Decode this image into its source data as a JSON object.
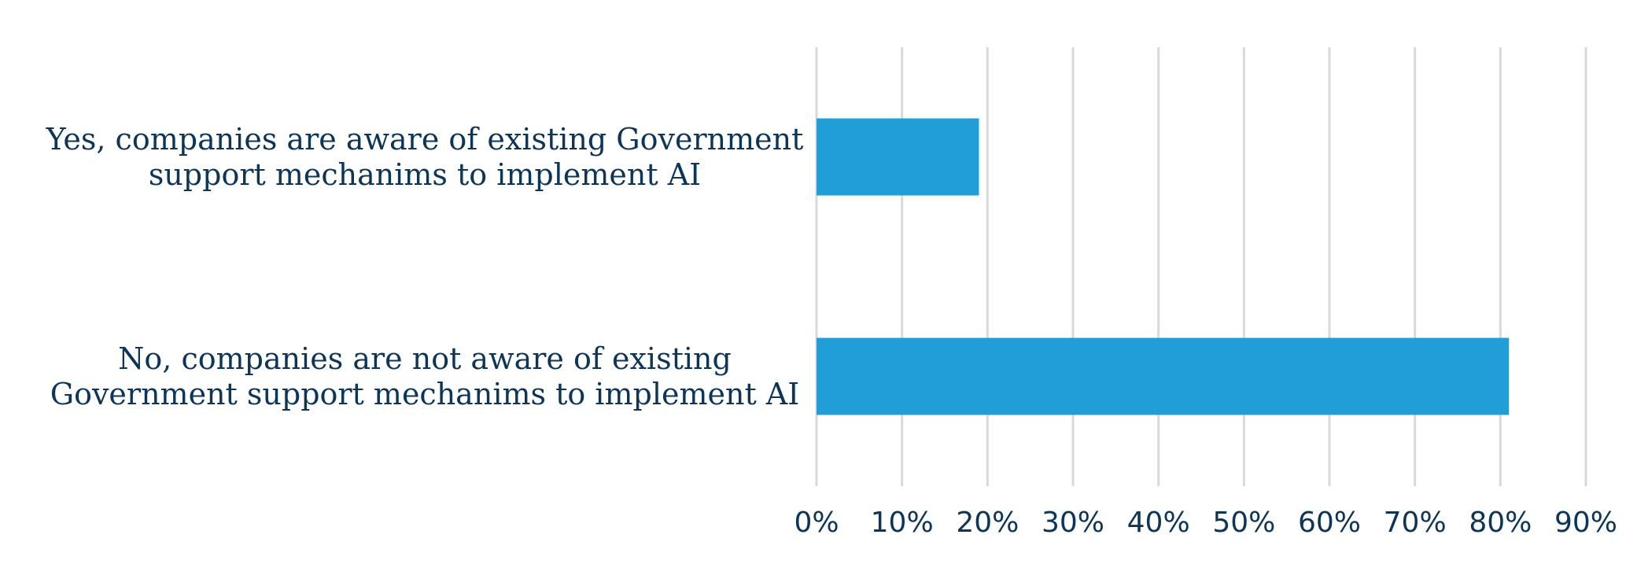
{
  "chart_data": {
    "type": "bar",
    "orientation": "horizontal",
    "title": "",
    "xlabel": "",
    "ylabel": "",
    "categories": [
      [
        "Yes, companies are aware of existing Government",
        "support mechanims to implement AI"
      ],
      [
        "No, companies are not aware of existing",
        "Government support mechanims to implement AI"
      ]
    ],
    "series": [
      {
        "values": [
          19,
          81
        ]
      }
    ],
    "xlim": [
      0,
      90
    ],
    "x_ticks": [
      "0%",
      "10%",
      "20%",
      "30%",
      "40%",
      "50%",
      "60%",
      "70%",
      "80%",
      "90%"
    ],
    "grid": "vertical",
    "legend": "none",
    "colors": {
      "bar": "#219ed8",
      "grid": "#d9d9d9",
      "text": "#0d3558"
    }
  }
}
